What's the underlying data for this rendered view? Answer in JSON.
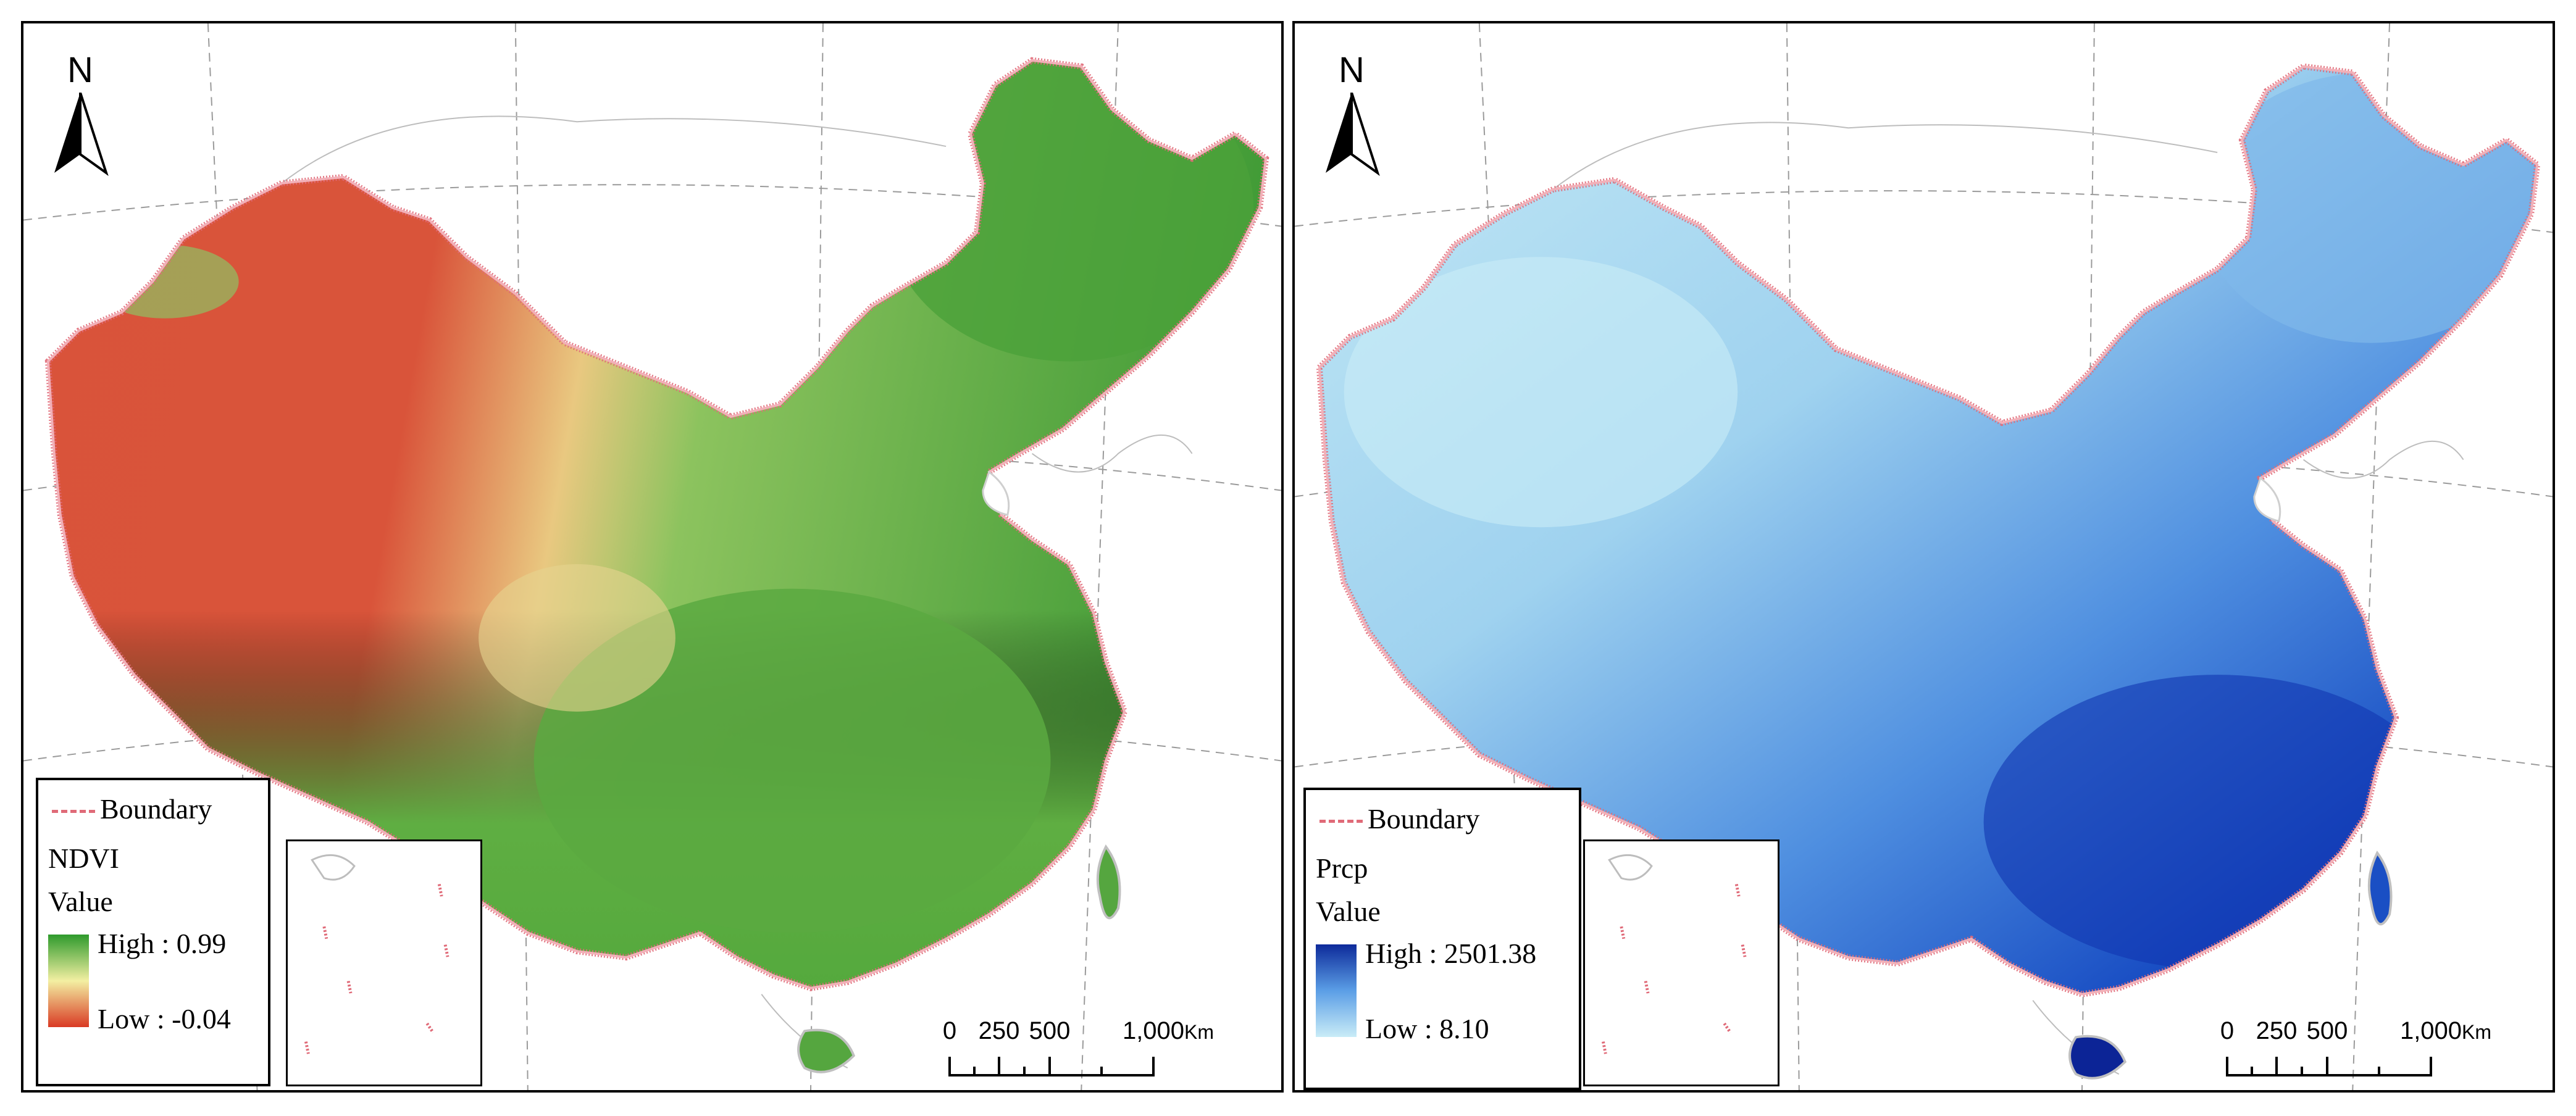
{
  "panels": [
    {
      "north_label": "N",
      "legend": {
        "boundary_label": "Boundary",
        "layer_name": "NDVI",
        "value_label": "Value",
        "high_label": "High : 0.99",
        "low_label": "Low : -0.04",
        "ramp_high_color": "#2e9a2c",
        "ramp_mid_color": "#f3efa2",
        "ramp_low_color": "#d93a24"
      },
      "scalebar": {
        "ticks": [
          "0",
          "250",
          "500",
          "1,000"
        ],
        "unit": "Km"
      },
      "palette": {
        "desert": "#d9533a",
        "transition": "#e9d48a",
        "vegetation": "#6cb34a",
        "dense": "#3f9a35"
      }
    },
    {
      "north_label": "N",
      "legend": {
        "boundary_label": "Boundary",
        "layer_name": "Prcp",
        "value_label": "Value",
        "high_label": "High : 2501.38",
        "low_label": "Low : 8.10",
        "ramp_high_color": "#0d2a9a",
        "ramp_mid_color": "#5b9ee6",
        "ramp_low_color": "#c9ecf7"
      },
      "scalebar": {
        "ticks": [
          "0",
          "250",
          "500",
          "1,000"
        ],
        "unit": "Km"
      },
      "palette": {
        "dry": "#bfe7f4",
        "moderate": "#6fb1e6",
        "wet": "#1a4fc4",
        "very_wet": "#0c2496"
      }
    }
  ],
  "colors": {
    "boundary": "#e06a78",
    "graticule": "#9a9a9a",
    "neighbor_borders": "#bdbdbd"
  }
}
